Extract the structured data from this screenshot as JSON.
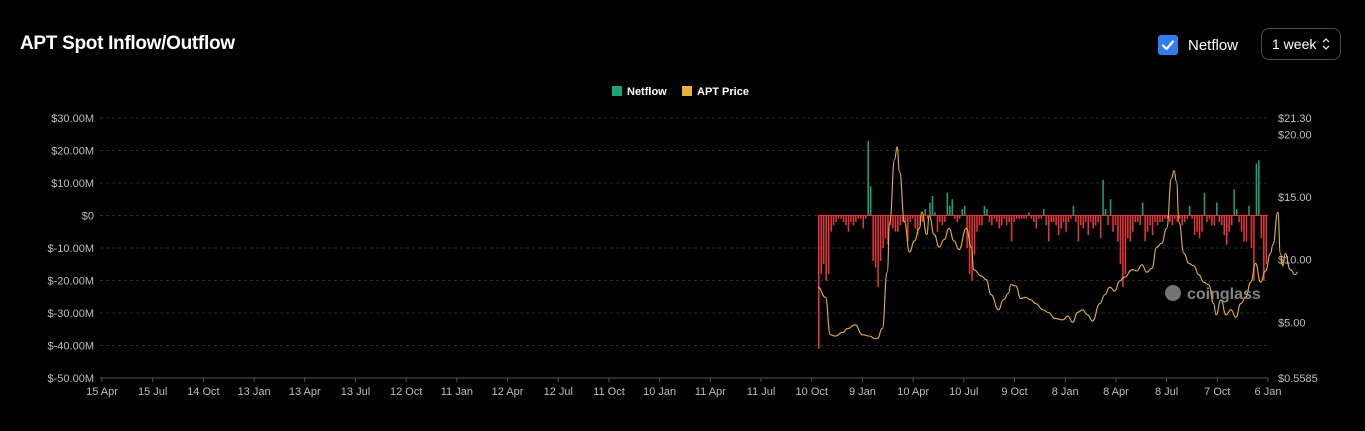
{
  "header": {
    "title": "APT Spot Inflow/Outflow",
    "netflow_toggle_label": "Netflow",
    "netflow_checked": true,
    "range_value": "1 week"
  },
  "watermark": "coinglass",
  "colors": {
    "positive": "#1aa37c",
    "negative": "#e5363b",
    "price": "#e2b340",
    "grid": "#2a2a2a",
    "axis_text": "#bdbdbd"
  },
  "chart_data": {
    "type": "bar",
    "title": "APT Spot Inflow/Outflow",
    "legend": {
      "placement": "top-center",
      "entries": [
        "Netflow",
        "APT Price"
      ]
    },
    "x_ticks": [
      "15 Apr",
      "15 Jul",
      "14 Oct",
      "13 Jan",
      "13 Apr",
      "13 Jul",
      "12 Oct",
      "11 Jan",
      "12 Apr",
      "12 Jul",
      "11 Oct",
      "10 Jan",
      "11 Apr",
      "11 Jul",
      "10 Oct",
      "9 Jan",
      "10 Apr",
      "10 Jul",
      "9 Oct",
      "8 Jan",
      "8 Apr",
      "8 Jul",
      "7 Oct",
      "6 Jan"
    ],
    "y_left": {
      "ticks": [
        "$30.00M",
        "$20.00M",
        "$10.00M",
        "$0",
        "$-10.00M",
        "$-20.00M",
        "$-30.00M",
        "$-40.00M",
        "$-50.00M"
      ],
      "range": [
        -50,
        30
      ],
      "unit": "M USD"
    },
    "y_right": {
      "ticks": [
        "$21.30",
        "$20.00",
        "$15.00",
        "$10.00",
        "$5.00",
        "$0.5585"
      ],
      "range": [
        0.5585,
        21.3
      ]
    },
    "grid": true,
    "series": [
      {
        "name": "Netflow",
        "type": "bar",
        "start_week": 235,
        "values": [
          -41,
          -18,
          -15,
          -20,
          -18,
          -5,
          -3,
          -2,
          -1,
          -1,
          -2,
          -3,
          -5,
          -2,
          -3,
          -2,
          -1,
          -1,
          -4,
          -1,
          23,
          9,
          -14,
          -16,
          -22,
          -14,
          -10,
          -7,
          -9,
          -3,
          -4,
          -5,
          -5,
          -3,
          -2,
          -2,
          -8,
          -2,
          -1,
          -4,
          -6,
          -3,
          -2,
          2,
          -1,
          4,
          6,
          1,
          -5,
          -2,
          -3,
          -2,
          7,
          3,
          5,
          -1,
          -2,
          -1,
          2,
          3,
          -10,
          -18,
          -20,
          -12,
          -5,
          -3,
          -3,
          3,
          2,
          -2,
          -3,
          -1,
          -2,
          -4,
          -3,
          -1,
          -3,
          -2,
          -8,
          -2,
          -1,
          -1,
          -1,
          -1,
          -1,
          1,
          -1,
          -2,
          -4,
          -1,
          -1,
          2,
          -3,
          -8,
          -2,
          -2,
          -3,
          -6,
          -4,
          -2,
          -5,
          -2,
          -1,
          3,
          -2,
          -8,
          -3,
          -4,
          -2,
          -6,
          -2,
          -4,
          -3,
          -2,
          -7,
          11,
          2,
          -3,
          5,
          -5,
          -3,
          -8,
          -15,
          -22,
          -18,
          -7,
          -8,
          -5,
          -2,
          -2,
          -3,
          4,
          -8,
          -5,
          -3,
          -6,
          -2,
          -3,
          -2,
          -2,
          -1,
          -1,
          -2,
          -3,
          -1,
          -2,
          -1,
          -3,
          -2,
          -1,
          3,
          -1,
          -6,
          -5,
          -7,
          -5,
          7,
          -2,
          -1,
          -3,
          -3,
          4,
          -2,
          -3,
          -6,
          -9,
          -5,
          -3,
          8,
          2,
          -2,
          -5,
          -8,
          -8,
          3,
          -10,
          -20,
          16,
          17,
          -7,
          -20,
          -15
        ]
      },
      {
        "name": "APT Price",
        "type": "line",
        "axis": "right",
        "points": [
          [
            0,
            7.8
          ],
          [
            3,
            7
          ],
          [
            5,
            4
          ],
          [
            7,
            3.9
          ],
          [
            10,
            4.2
          ],
          [
            12,
            4.5
          ],
          [
            15,
            4.8
          ],
          [
            18,
            4
          ],
          [
            21,
            3.9
          ],
          [
            23,
            3.7
          ],
          [
            24,
            3.7
          ],
          [
            26,
            4.5
          ],
          [
            28,
            9
          ],
          [
            29,
            13
          ],
          [
            31,
            18
          ],
          [
            32,
            19
          ],
          [
            33,
            17
          ],
          [
            35,
            13
          ],
          [
            37,
            10.6
          ],
          [
            39,
            11.5
          ],
          [
            41,
            12.5
          ],
          [
            42,
            13.8
          ],
          [
            44,
            12
          ],
          [
            45,
            13.5
          ],
          [
            47,
            12
          ],
          [
            49,
            11
          ],
          [
            51,
            11.6
          ],
          [
            53,
            12.5
          ],
          [
            55,
            11.5
          ],
          [
            57,
            10.8
          ],
          [
            60,
            12.5
          ],
          [
            62,
            11
          ],
          [
            63,
            9.2
          ],
          [
            66,
            8.7
          ],
          [
            68,
            8.4
          ],
          [
            70,
            7.2
          ],
          [
            73,
            6
          ],
          [
            75,
            6.8
          ],
          [
            77,
            7.3
          ],
          [
            78,
            8
          ],
          [
            80,
            7.9
          ],
          [
            82,
            6.9
          ],
          [
            84,
            7
          ],
          [
            86,
            6.8
          ],
          [
            88,
            6.5
          ],
          [
            91,
            6
          ],
          [
            93,
            5.8
          ],
          [
            96,
            5.3
          ],
          [
            99,
            5.2
          ],
          [
            101,
            5.5
          ],
          [
            103,
            5
          ],
          [
            105,
            5.8
          ],
          [
            107,
            6
          ],
          [
            109,
            5.6
          ],
          [
            111,
            5.1
          ],
          [
            114,
            6.5
          ],
          [
            116,
            7.2
          ],
          [
            118,
            7.8
          ],
          [
            120,
            7.5
          ],
          [
            122,
            8.3
          ],
          [
            124,
            8.6
          ],
          [
            127,
            9.2
          ],
          [
            129,
            9.1
          ],
          [
            131,
            9.6
          ],
          [
            133,
            9
          ],
          [
            135,
            9.3
          ],
          [
            137,
            11
          ],
          [
            139,
            11.3
          ],
          [
            141,
            12.5
          ],
          [
            143,
            16.5
          ],
          [
            144,
            17.1
          ],
          [
            145,
            16.2
          ],
          [
            146,
            13
          ],
          [
            148,
            10.5
          ],
          [
            150,
            9.7
          ],
          [
            152,
            9.5
          ],
          [
            154,
            8.8
          ],
          [
            156,
            8.2
          ],
          [
            158,
            8
          ],
          [
            160,
            6.5
          ],
          [
            161,
            5.6
          ],
          [
            163,
            6.8
          ],
          [
            165,
            5.6
          ],
          [
            167,
            6
          ],
          [
            169,
            5.4
          ],
          [
            171,
            6.5
          ],
          [
            173,
            7
          ],
          [
            175,
            8.2
          ],
          [
            177,
            9.7
          ],
          [
            179,
            8.2
          ],
          [
            181,
            9.1
          ],
          [
            183,
            10.5
          ],
          [
            184,
            11.2
          ],
          [
            186,
            13.8
          ],
          [
            187,
            10.5
          ],
          [
            188,
            9.5
          ],
          [
            189,
            10.5
          ],
          [
            191,
            9.2
          ],
          [
            193,
            8.8
          ],
          [
            194,
            9
          ]
        ]
      }
    ]
  }
}
